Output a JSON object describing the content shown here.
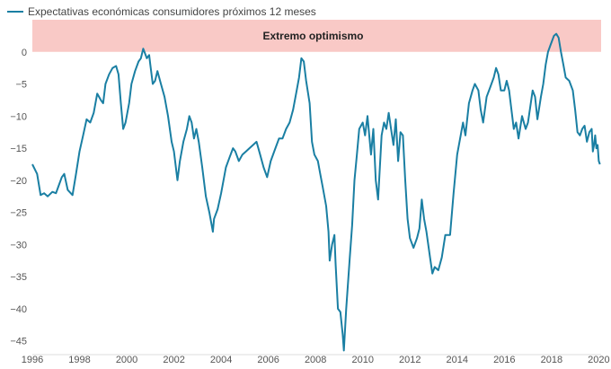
{
  "chart_data": {
    "type": "line",
    "title": "",
    "xlabel": "",
    "ylabel": "",
    "xlim": [
      1996,
      2020.1
    ],
    "ylim": [
      -47,
      5
    ],
    "grid": false,
    "legend_position": "top-left",
    "x_tick_labels": [
      "1996",
      "1998",
      "2000",
      "2002",
      "2004",
      "2006",
      "2008",
      "2010",
      "2012",
      "2014",
      "2016",
      "2018",
      "2020"
    ],
    "y_tick_labels": [
      "0",
      "-5",
      "-10",
      "-15",
      "-20",
      "-25",
      "-30",
      "-35",
      "-40",
      "-45"
    ],
    "band": {
      "label": "Extremo optimismo",
      "y_from": 0,
      "y_to": 5,
      "color": "#f9c9c6"
    },
    "series": [
      {
        "name": "Expectativas económicas consumidores próximos 12 meses",
        "color": "#1a7fa3",
        "points": [
          [
            1996.0,
            -17.5
          ],
          [
            1996.2,
            -19
          ],
          [
            1996.35,
            -22.3
          ],
          [
            1996.5,
            -22
          ],
          [
            1996.65,
            -22.5
          ],
          [
            1996.85,
            -21.8
          ],
          [
            1997.0,
            -22
          ],
          [
            1997.1,
            -21
          ],
          [
            1997.25,
            -19.5
          ],
          [
            1997.35,
            -19
          ],
          [
            1997.5,
            -21.5
          ],
          [
            1997.7,
            -22.3
          ],
          [
            1997.85,
            -19
          ],
          [
            1998.0,
            -15.5
          ],
          [
            1998.15,
            -13
          ],
          [
            1998.3,
            -10.5
          ],
          [
            1998.45,
            -11
          ],
          [
            1998.6,
            -9.5
          ],
          [
            1998.75,
            -6.5
          ],
          [
            1998.9,
            -7.5
          ],
          [
            1999.0,
            -8
          ],
          [
            1999.1,
            -5
          ],
          [
            1999.25,
            -3.5
          ],
          [
            1999.4,
            -2.5
          ],
          [
            1999.55,
            -2.2
          ],
          [
            1999.65,
            -3.5
          ],
          [
            1999.75,
            -8
          ],
          [
            1999.85,
            -12
          ],
          [
            1999.95,
            -11
          ],
          [
            2000.1,
            -8
          ],
          [
            2000.2,
            -5
          ],
          [
            2000.35,
            -3
          ],
          [
            2000.5,
            -1.5
          ],
          [
            2000.6,
            -1
          ],
          [
            2000.7,
            0.5
          ],
          [
            2000.85,
            -1
          ],
          [
            2000.95,
            -0.5
          ],
          [
            2001.0,
            -2
          ],
          [
            2001.1,
            -5
          ],
          [
            2001.2,
            -4.5
          ],
          [
            2001.3,
            -3
          ],
          [
            2001.45,
            -5
          ],
          [
            2001.6,
            -7
          ],
          [
            2001.75,
            -10
          ],
          [
            2001.9,
            -14
          ],
          [
            2002.0,
            -15.5
          ],
          [
            2002.15,
            -20
          ],
          [
            2002.25,
            -17
          ],
          [
            2002.4,
            -14
          ],
          [
            2002.55,
            -12
          ],
          [
            2002.65,
            -10
          ],
          [
            2002.75,
            -11
          ],
          [
            2002.85,
            -13.5
          ],
          [
            2002.95,
            -12
          ],
          [
            2003.05,
            -14
          ],
          [
            2003.2,
            -18
          ],
          [
            2003.35,
            -22.5
          ],
          [
            2003.5,
            -25
          ],
          [
            2003.65,
            -28
          ],
          [
            2003.7,
            -26
          ],
          [
            2003.85,
            -24.5
          ],
          [
            2004.0,
            -22
          ],
          [
            2004.2,
            -18
          ],
          [
            2004.35,
            -16.5
          ],
          [
            2004.5,
            -15
          ],
          [
            2004.6,
            -15.5
          ],
          [
            2004.75,
            -17
          ],
          [
            2004.9,
            -16
          ],
          [
            2005.05,
            -15.5
          ],
          [
            2005.2,
            -15
          ],
          [
            2005.35,
            -14.5
          ],
          [
            2005.5,
            -14
          ],
          [
            2005.65,
            -16
          ],
          [
            2005.8,
            -18
          ],
          [
            2005.95,
            -19.5
          ],
          [
            2006.1,
            -17
          ],
          [
            2006.3,
            -15
          ],
          [
            2006.45,
            -13.5
          ],
          [
            2006.6,
            -13.5
          ],
          [
            2006.75,
            -12
          ],
          [
            2006.9,
            -11
          ],
          [
            2007.05,
            -9
          ],
          [
            2007.2,
            -6
          ],
          [
            2007.3,
            -4
          ],
          [
            2007.4,
            -1
          ],
          [
            2007.5,
            -1.5
          ],
          [
            2007.6,
            -4.5
          ],
          [
            2007.75,
            -8
          ],
          [
            2007.85,
            -14
          ],
          [
            2007.95,
            -16
          ],
          [
            2008.1,
            -17
          ],
          [
            2008.2,
            -19
          ],
          [
            2008.3,
            -21
          ],
          [
            2008.45,
            -24
          ],
          [
            2008.55,
            -28
          ],
          [
            2008.6,
            -32.5
          ],
          [
            2008.7,
            -30
          ],
          [
            2008.8,
            -28.5
          ],
          [
            2008.85,
            -33
          ],
          [
            2008.95,
            -40
          ],
          [
            2009.05,
            -40.5
          ],
          [
            2009.15,
            -44
          ],
          [
            2009.2,
            -46.5
          ],
          [
            2009.3,
            -40
          ],
          [
            2009.45,
            -32
          ],
          [
            2009.55,
            -27
          ],
          [
            2009.65,
            -20
          ],
          [
            2009.75,
            -16
          ],
          [
            2009.85,
            -12
          ],
          [
            2010.0,
            -11
          ],
          [
            2010.1,
            -13
          ],
          [
            2010.2,
            -10
          ],
          [
            2010.3,
            -14
          ],
          [
            2010.35,
            -16
          ],
          [
            2010.45,
            -12
          ],
          [
            2010.55,
            -20
          ],
          [
            2010.65,
            -23
          ],
          [
            2010.8,
            -13
          ],
          [
            2010.9,
            -11
          ],
          [
            2011.0,
            -12
          ],
          [
            2011.1,
            -9.5
          ],
          [
            2011.2,
            -12
          ],
          [
            2011.3,
            -14.5
          ],
          [
            2011.4,
            -10.5
          ],
          [
            2011.5,
            -17
          ],
          [
            2011.6,
            -12.5
          ],
          [
            2011.7,
            -13
          ],
          [
            2011.8,
            -20
          ],
          [
            2011.9,
            -26
          ],
          [
            2012.0,
            -29
          ],
          [
            2012.15,
            -30.5
          ],
          [
            2012.3,
            -29
          ],
          [
            2012.4,
            -27.5
          ],
          [
            2012.5,
            -23
          ],
          [
            2012.6,
            -26
          ],
          [
            2012.7,
            -28
          ],
          [
            2012.85,
            -32
          ],
          [
            2012.95,
            -34.5
          ],
          [
            2013.05,
            -33.5
          ],
          [
            2013.2,
            -34
          ],
          [
            2013.35,
            -32
          ],
          [
            2013.5,
            -28.5
          ],
          [
            2013.7,
            -28.5
          ],
          [
            2013.85,
            -22
          ],
          [
            2014.0,
            -16
          ],
          [
            2014.15,
            -13
          ],
          [
            2014.25,
            -11
          ],
          [
            2014.35,
            -13
          ],
          [
            2014.5,
            -8
          ],
          [
            2014.65,
            -6
          ],
          [
            2014.75,
            -5
          ],
          [
            2014.9,
            -6
          ],
          [
            2015.0,
            -9
          ],
          [
            2015.1,
            -11
          ],
          [
            2015.25,
            -7
          ],
          [
            2015.4,
            -5.5
          ],
          [
            2015.55,
            -4
          ],
          [
            2015.65,
            -2.5
          ],
          [
            2015.75,
            -3.5
          ],
          [
            2015.85,
            -6
          ],
          [
            2016.0,
            -6
          ],
          [
            2016.1,
            -4.5
          ],
          [
            2016.2,
            -6
          ],
          [
            2016.3,
            -9
          ],
          [
            2016.4,
            -12
          ],
          [
            2016.5,
            -11
          ],
          [
            2016.6,
            -13.5
          ],
          [
            2016.75,
            -10
          ],
          [
            2016.9,
            -12
          ],
          [
            2017.0,
            -11
          ],
          [
            2017.1,
            -8.5
          ],
          [
            2017.2,
            -6
          ],
          [
            2017.3,
            -7
          ],
          [
            2017.4,
            -10.5
          ],
          [
            2017.55,
            -7
          ],
          [
            2017.65,
            -5
          ],
          [
            2017.75,
            -2
          ],
          [
            2017.85,
            0
          ],
          [
            2017.95,
            1
          ],
          [
            2018.1,
            2.5
          ],
          [
            2018.2,
            2.8
          ],
          [
            2018.3,
            2.2
          ],
          [
            2018.4,
            0
          ],
          [
            2018.5,
            -2
          ],
          [
            2018.6,
            -4
          ],
          [
            2018.75,
            -4.5
          ],
          [
            2018.9,
            -6
          ],
          [
            2019.0,
            -9
          ],
          [
            2019.1,
            -12.5
          ],
          [
            2019.2,
            -13
          ],
          [
            2019.3,
            -12
          ],
          [
            2019.4,
            -11.5
          ],
          [
            2019.5,
            -14
          ],
          [
            2019.6,
            -12.5
          ],
          [
            2019.7,
            -12
          ],
          [
            2019.75,
            -15.5
          ],
          [
            2019.8,
            -14.5
          ],
          [
            2019.85,
            -13
          ],
          [
            2019.9,
            -15
          ],
          [
            2019.95,
            -14.5
          ],
          [
            2020.0,
            -17
          ],
          [
            2020.05,
            -17.5
          ]
        ]
      }
    ]
  }
}
